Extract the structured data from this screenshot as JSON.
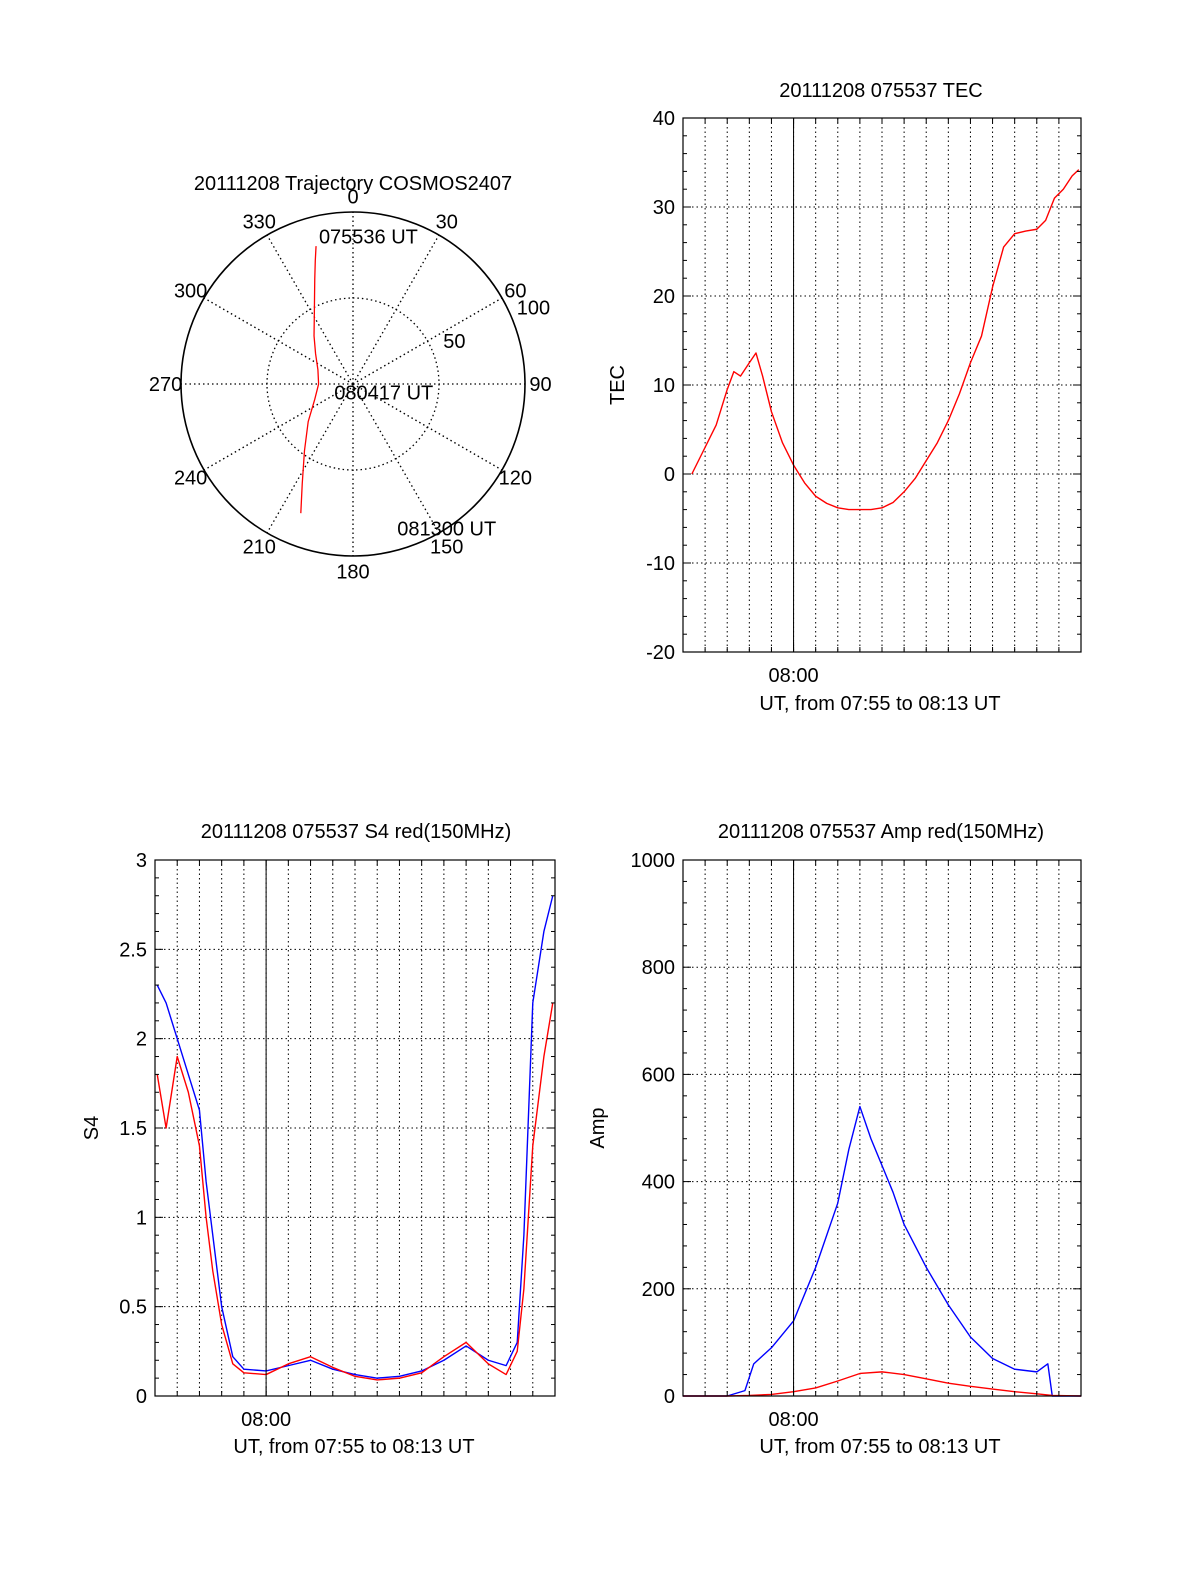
{
  "colors": {
    "red": "#ff0000",
    "blue": "#0000ff",
    "axis": "#000000",
    "grid": "#000000"
  },
  "chart_data": [
    {
      "type": "polar",
      "title": "20111208 Trajectory COSMOS2407",
      "angle_labels": [
        "0",
        "30",
        "60",
        "90",
        "120",
        "150",
        "180",
        "210",
        "240",
        "270",
        "300",
        "330"
      ],
      "angle_values": [
        0,
        30,
        60,
        90,
        120,
        150,
        180,
        210,
        240,
        270,
        300,
        330
      ],
      "radial_labels": [
        "50",
        "100"
      ],
      "radial_values": [
        50,
        100
      ],
      "grid": true,
      "series": [
        {
          "color": "red",
          "az": [
            345,
            343,
            340,
            336,
            330,
            321,
            309,
            292,
            270,
            248,
            230,
            216,
            207,
            202
          ],
          "zen": [
            83,
            75,
            65,
            55,
            45,
            36,
            28,
            22,
            20,
            24,
            34,
            48,
            65,
            81
          ]
        }
      ],
      "annotations": [
        {
          "text": "075536 UT",
          "az": 347,
          "zen": 88
        },
        {
          "text": "080417 UT",
          "az": 245,
          "zen": 12
        },
        {
          "text": "081300 UT",
          "az": 163,
          "zen": 88
        }
      ]
    },
    {
      "type": "line",
      "title": "20111208 075537 TEC",
      "xlabel": "UT, from 07:55 to 08:13 UT",
      "ylabel": "TEC",
      "xlim": [
        0,
        18
      ],
      "ylim": [
        -20,
        40
      ],
      "y_ticks": [
        -20,
        -10,
        0,
        10,
        20,
        30,
        40
      ],
      "x_ticks": [
        {
          "value": 5,
          "label": "08:00"
        }
      ],
      "grid": true,
      "series": [
        {
          "color": "red",
          "x": [
            0.4,
            0.9,
            1.5,
            2.0,
            2.3,
            2.6,
            3.0,
            3.3,
            3.6,
            4.0,
            4.5,
            5.0,
            5.5,
            6.0,
            6.5,
            7.0,
            7.5,
            8.0,
            8.5,
            9.0,
            9.5,
            10.0,
            10.5,
            11.0,
            11.5,
            12.0,
            12.5,
            13.0,
            13.5,
            14.0,
            14.5,
            15.0,
            15.5,
            16.0,
            16.4,
            16.8,
            17.2,
            17.6,
            17.9
          ],
          "y": [
            0.0,
            2.5,
            5.5,
            9.5,
            11.5,
            11.0,
            12.5,
            13.6,
            11.0,
            7.0,
            3.5,
            1.0,
            -1.0,
            -2.5,
            -3.3,
            -3.8,
            -4.0,
            -4.0,
            -4.0,
            -3.8,
            -3.2,
            -2.0,
            -0.5,
            1.5,
            3.5,
            6.0,
            9.0,
            12.5,
            15.5,
            21.0,
            25.5,
            27.0,
            27.3,
            27.5,
            28.5,
            31.0,
            32.0,
            33.5,
            34.2
          ]
        }
      ]
    },
    {
      "type": "line",
      "title": "20111208 075537 S4 red(150MHz)",
      "xlabel": "UT, from 07:55 to 08:13 UT",
      "ylabel": "S4",
      "xlim": [
        0,
        18
      ],
      "ylim": [
        0,
        3
      ],
      "y_ticks": [
        0,
        0.5,
        1,
        1.5,
        2,
        2.5,
        3
      ],
      "y_tick_labels": [
        "0",
        "0.5",
        "1",
        "1.5",
        "2",
        "2.5",
        "3"
      ],
      "x_ticks": [
        {
          "value": 5,
          "label": "08:00"
        }
      ],
      "grid": true,
      "series": [
        {
          "color": "blue",
          "x": [
            0.1,
            0.5,
            1.0,
            1.5,
            2.0,
            2.3,
            2.6,
            3.0,
            3.5,
            4.0,
            5.0,
            6.0,
            7.0,
            8.0,
            9.0,
            10.0,
            11.0,
            12.0,
            13.0,
            14.0,
            15.0,
            15.8,
            16.3,
            16.6,
            17.0,
            17.5,
            17.9
          ],
          "y": [
            2.3,
            2.2,
            2.0,
            1.8,
            1.6,
            1.2,
            0.9,
            0.5,
            0.22,
            0.15,
            0.14,
            0.17,
            0.2,
            0.15,
            0.12,
            0.1,
            0.11,
            0.14,
            0.2,
            0.28,
            0.2,
            0.17,
            0.3,
            0.9,
            2.2,
            2.6,
            2.8
          ]
        },
        {
          "color": "red",
          "x": [
            0.1,
            0.5,
            1.0,
            1.5,
            2.0,
            2.3,
            2.6,
            3.0,
            3.5,
            4.0,
            5.0,
            6.0,
            7.0,
            8.0,
            9.0,
            10.0,
            11.0,
            12.0,
            13.0,
            14.0,
            15.0,
            15.8,
            16.3,
            16.6,
            17.0,
            17.5,
            17.9
          ],
          "y": [
            1.8,
            1.5,
            1.9,
            1.7,
            1.4,
            1.0,
            0.7,
            0.4,
            0.18,
            0.13,
            0.12,
            0.18,
            0.22,
            0.16,
            0.11,
            0.09,
            0.1,
            0.13,
            0.22,
            0.3,
            0.18,
            0.12,
            0.25,
            0.6,
            1.4,
            1.9,
            2.2
          ]
        }
      ]
    },
    {
      "type": "line",
      "title": "20111208 075537 Amp red(150MHz)",
      "xlabel": "UT, from 07:55 to 08:13 UT",
      "ylabel": "Amp",
      "xlim": [
        0,
        18
      ],
      "ylim": [
        0,
        1000
      ],
      "y_ticks": [
        0,
        200,
        400,
        600,
        800,
        1000
      ],
      "x_ticks": [
        {
          "value": 5,
          "label": "08:00"
        }
      ],
      "grid": true,
      "series": [
        {
          "color": "blue",
          "x": [
            0.0,
            1.0,
            2.0,
            2.8,
            3.2,
            4.0,
            5.0,
            6.0,
            7.0,
            7.5,
            8.0,
            8.5,
            9.0,
            9.5,
            10.0,
            11.0,
            12.0,
            13.0,
            14.0,
            15.0,
            16.0,
            16.5,
            16.7,
            17.0,
            18.0
          ],
          "y": [
            0,
            0,
            0,
            10,
            60,
            90,
            140,
            240,
            360,
            460,
            540,
            480,
            430,
            380,
            320,
            240,
            170,
            110,
            70,
            50,
            45,
            60,
            0,
            0,
            0
          ]
        },
        {
          "color": "red",
          "x": [
            0.0,
            2.0,
            3.0,
            4.0,
            5.0,
            6.0,
            7.0,
            8.0,
            9.0,
            10.0,
            11.0,
            12.0,
            13.0,
            14.0,
            15.0,
            16.0,
            16.7,
            18.0
          ],
          "y": [
            0,
            0,
            1,
            3,
            8,
            15,
            28,
            42,
            45,
            40,
            32,
            24,
            18,
            13,
            8,
            4,
            1,
            0
          ]
        }
      ]
    }
  ]
}
